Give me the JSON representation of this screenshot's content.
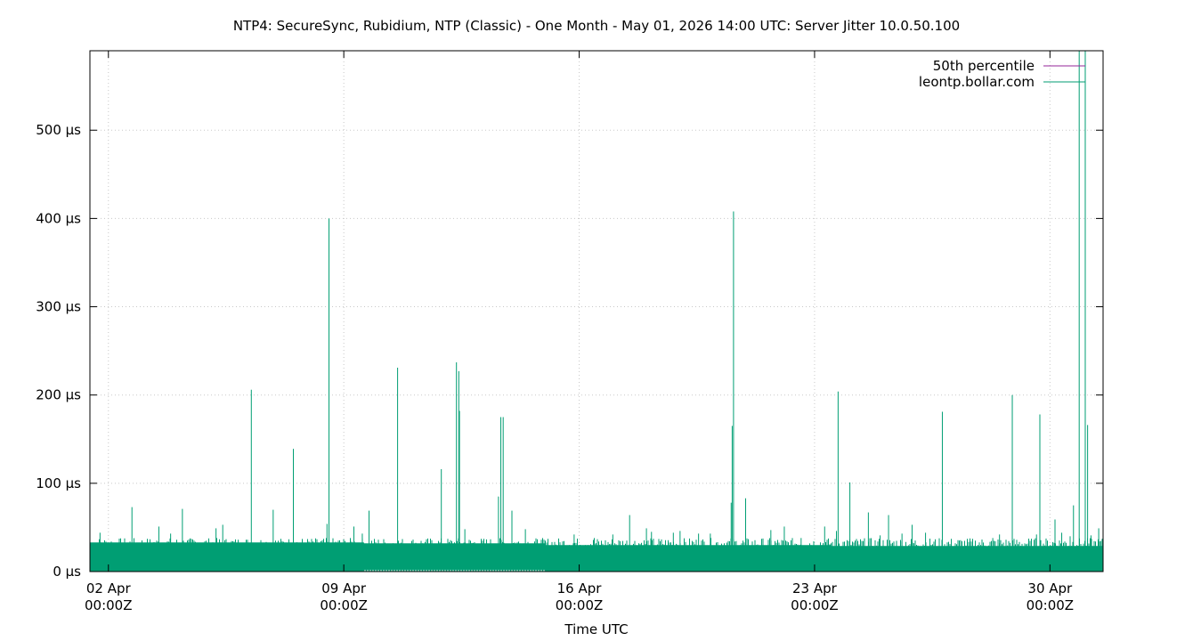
{
  "chart_data": {
    "type": "line",
    "title": "NTP4: SecureSync, Rubidium, NTP (Classic) - One Month - May 01, 2026 14:00 UTC: Server Jitter 10.0.50.100",
    "xlabel": "Time UTC",
    "ylabel": "",
    "x_unit": "days since 2026-04-01 00:00Z",
    "xlim": [
      0.45,
      30.58
    ],
    "ylim": [
      0,
      590
    ],
    "y_unit": "µs",
    "grid": true,
    "legend_position": "top-right",
    "x_ticks": [
      {
        "x": 1,
        "line1": "02 Apr",
        "line2": "00:00Z"
      },
      {
        "x": 8,
        "line1": "09 Apr",
        "line2": "00:00Z"
      },
      {
        "x": 15,
        "line1": "16 Apr",
        "line2": "00:00Z"
      },
      {
        "x": 22,
        "line1": "23 Apr",
        "line2": "00:00Z"
      },
      {
        "x": 29,
        "line1": "30 Apr",
        "line2": "00:00Z"
      }
    ],
    "y_ticks": [
      {
        "y": 0,
        "label": "0 µs"
      },
      {
        "y": 100,
        "label": "100 µs"
      },
      {
        "y": 200,
        "label": "200 µs"
      },
      {
        "y": 300,
        "label": "300 µs"
      },
      {
        "y": 400,
        "label": "400 µs"
      },
      {
        "y": 500,
        "label": "500 µs"
      }
    ],
    "series": [
      {
        "name": "50th percentile",
        "color": "#94249a",
        "values": []
      },
      {
        "name": "leontp.bollar.com",
        "color": "#009e73",
        "baseline_band": [
          {
            "x_start": 0.45,
            "x_end": 8.6,
            "low": 0,
            "high": 33
          },
          {
            "x_start": 8.6,
            "x_end": 14.0,
            "low": 2,
            "high": 32
          },
          {
            "x_start": 14.0,
            "x_end": 22.5,
            "low": 0,
            "high": 30
          },
          {
            "x_start": 22.5,
            "x_end": 30.58,
            "low": 0,
            "high": 29
          }
        ],
        "spikes": [
          {
            "x": 0.75,
            "y": 44
          },
          {
            "x": 1.7,
            "y": 73
          },
          {
            "x": 2.5,
            "y": 51
          },
          {
            "x": 2.85,
            "y": 43
          },
          {
            "x": 3.2,
            "y": 71
          },
          {
            "x": 4.2,
            "y": 49
          },
          {
            "x": 4.4,
            "y": 53
          },
          {
            "x": 5.25,
            "y": 206
          },
          {
            "x": 5.9,
            "y": 70
          },
          {
            "x": 6.5,
            "y": 139
          },
          {
            "x": 7.5,
            "y": 54
          },
          {
            "x": 7.56,
            "y": 400
          },
          {
            "x": 8.3,
            "y": 51
          },
          {
            "x": 8.55,
            "y": 43
          },
          {
            "x": 8.75,
            "y": 69
          },
          {
            "x": 9.6,
            "y": 231
          },
          {
            "x": 10.9,
            "y": 116
          },
          {
            "x": 11.35,
            "y": 237
          },
          {
            "x": 11.42,
            "y": 227
          },
          {
            "x": 11.44,
            "y": 182
          },
          {
            "x": 11.6,
            "y": 48
          },
          {
            "x": 12.6,
            "y": 85
          },
          {
            "x": 12.67,
            "y": 175
          },
          {
            "x": 12.74,
            "y": 175
          },
          {
            "x": 13.0,
            "y": 69
          },
          {
            "x": 13.4,
            "y": 48
          },
          {
            "x": 14.85,
            "y": 42
          },
          {
            "x": 15.45,
            "y": 38
          },
          {
            "x": 16.0,
            "y": 42
          },
          {
            "x": 16.5,
            "y": 64
          },
          {
            "x": 17.0,
            "y": 49
          },
          {
            "x": 17.15,
            "y": 45
          },
          {
            "x": 17.8,
            "y": 44
          },
          {
            "x": 18.0,
            "y": 46
          },
          {
            "x": 18.55,
            "y": 43
          },
          {
            "x": 18.9,
            "y": 43
          },
          {
            "x": 19.52,
            "y": 78
          },
          {
            "x": 19.55,
            "y": 165
          },
          {
            "x": 19.59,
            "y": 408
          },
          {
            "x": 19.95,
            "y": 83
          },
          {
            "x": 20.7,
            "y": 47
          },
          {
            "x": 21.1,
            "y": 51
          },
          {
            "x": 21.6,
            "y": 38
          },
          {
            "x": 22.3,
            "y": 51
          },
          {
            "x": 22.65,
            "y": 46
          },
          {
            "x": 22.7,
            "y": 204
          },
          {
            "x": 23.05,
            "y": 101
          },
          {
            "x": 23.6,
            "y": 67
          },
          {
            "x": 23.95,
            "y": 41
          },
          {
            "x": 24.2,
            "y": 64
          },
          {
            "x": 24.6,
            "y": 43
          },
          {
            "x": 24.9,
            "y": 53
          },
          {
            "x": 25.3,
            "y": 44
          },
          {
            "x": 25.8,
            "y": 181
          },
          {
            "x": 27.3,
            "y": 38
          },
          {
            "x": 27.5,
            "y": 42
          },
          {
            "x": 27.88,
            "y": 200
          },
          {
            "x": 28.6,
            "y": 42
          },
          {
            "x": 28.7,
            "y": 178
          },
          {
            "x": 29.15,
            "y": 59
          },
          {
            "x": 29.35,
            "y": 44
          },
          {
            "x": 29.6,
            "y": 40
          },
          {
            "x": 29.7,
            "y": 75
          },
          {
            "x": 29.8,
            "y": 30
          },
          {
            "x": 29.87,
            "y": 590
          },
          {
            "x": 30.05,
            "y": 590
          },
          {
            "x": 30.12,
            "y": 166
          },
          {
            "x": 30.22,
            "y": 41
          },
          {
            "x": 30.45,
            "y": 49
          }
        ]
      }
    ]
  }
}
